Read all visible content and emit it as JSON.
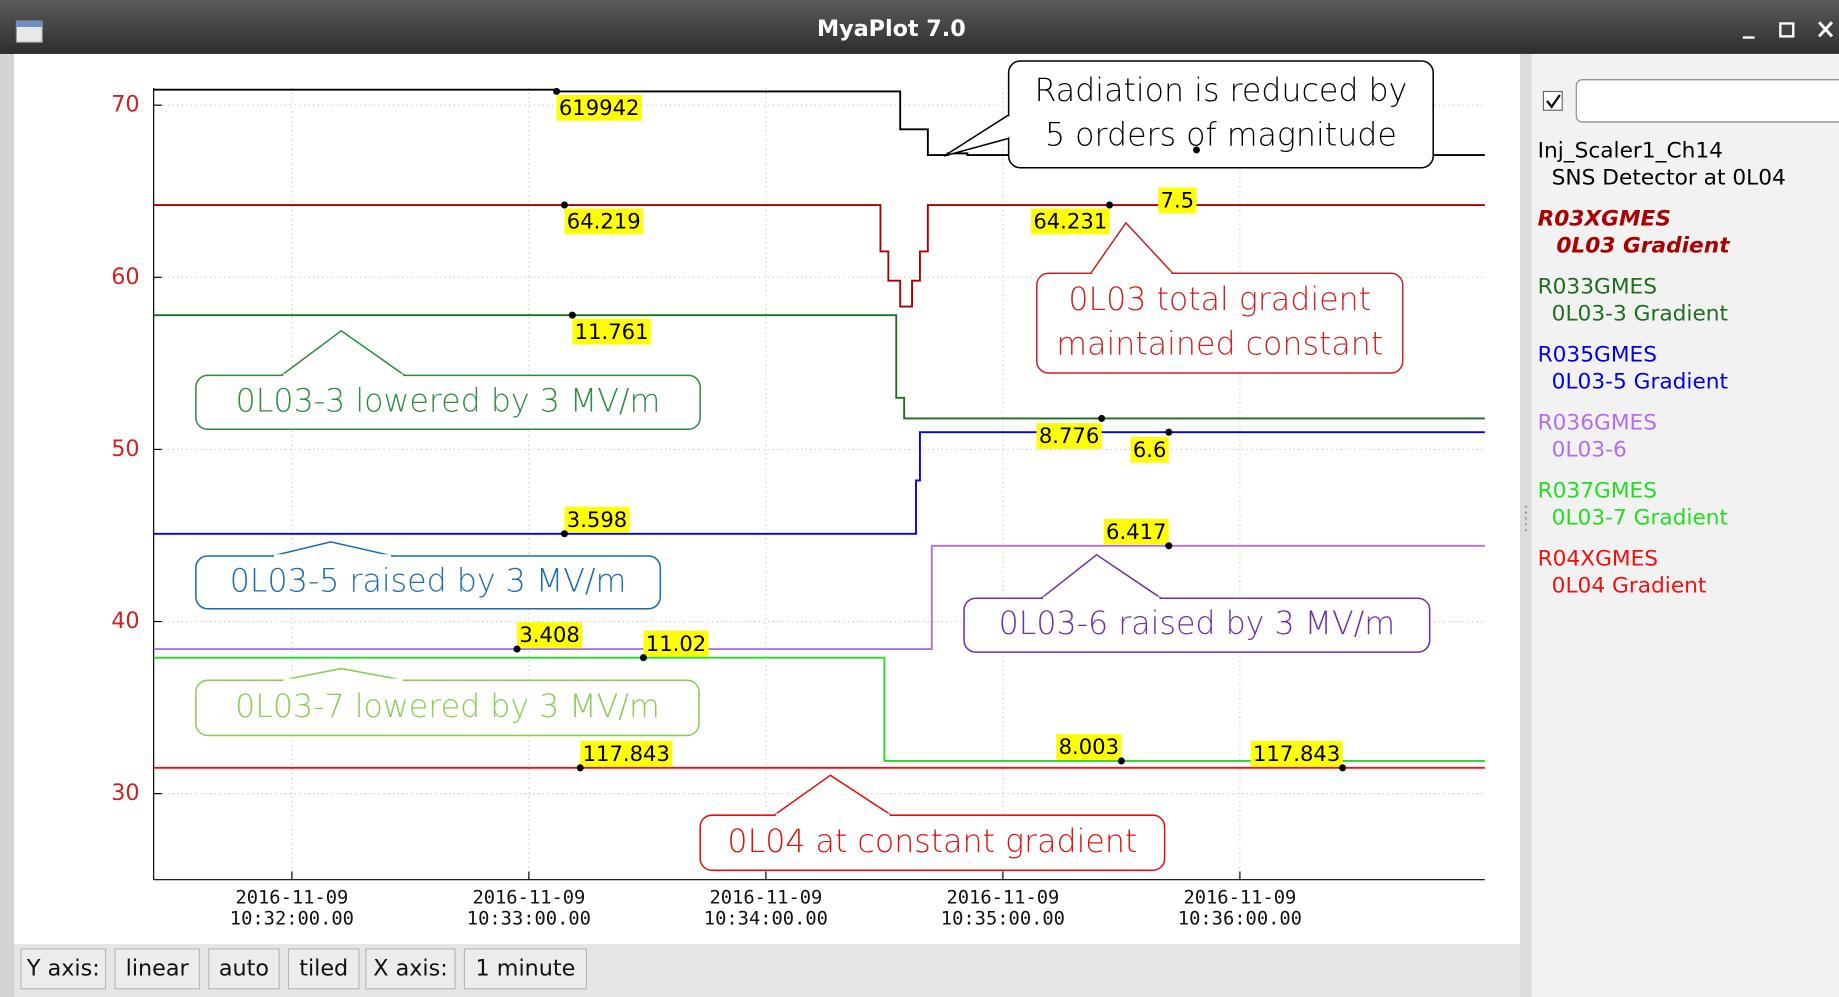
{
  "window": {
    "title": "MyaPlot 7.0"
  },
  "toolbar": [
    "Y axis:",
    "linear",
    "auto",
    "tiled",
    "X axis:",
    "1 minute"
  ],
  "chart_data": {
    "type": "line",
    "step": true,
    "grid": true,
    "xlim": [
      "2016-11-09 10:31:25",
      "2016-11-09 10:37:02"
    ],
    "xticks": [
      {
        "value": "2016-11-09 10:32:00",
        "label": "2016-11-09\n10:32:00.00"
      },
      {
        "value": "2016-11-09 10:33:00",
        "label": "2016-11-09\n10:33:00.00"
      },
      {
        "value": "2016-11-09 10:34:00",
        "label": "2016-11-09\n10:34:00.00"
      },
      {
        "value": "2016-11-09 10:35:00",
        "label": "2016-11-09\n10:35:00.00"
      },
      {
        "value": "2016-11-09 10:36:00",
        "label": "2016-11-09\n10:36:00.00"
      }
    ],
    "ylim": [
      25,
      71
    ],
    "yticks": [
      30,
      40,
      50,
      60,
      70
    ],
    "ytick_color": "#cc2222",
    "readout_color": "#ffff00",
    "series": [
      {
        "name": "Inj_Scaler1_Ch14",
        "description": "SNS Detector at 0L04",
        "color": "#000000",
        "bold": false,
        "x": [
          "2016-11-09 10:31:25",
          "2016-11-09 10:33:07",
          "2016-11-09 10:34:34",
          "2016-11-09 10:34:41",
          "2016-11-09 10:34:46",
          "2016-11-09 10:34:51",
          "2016-11-09 10:35:13",
          "2016-11-09 10:35:18",
          "2016-11-09 10:35:24",
          "2016-11-09 10:35:49",
          "2016-11-09 10:35:58",
          "2016-11-09 10:37:02"
        ],
        "values": [
          70.9,
          70.8,
          68.6,
          67.1,
          67.2,
          67.1,
          67.0,
          67.2,
          67.0,
          67.4,
          67.1,
          67.1
        ],
        "readouts": [
          {
            "x": "2016-11-09 10:33:07",
            "y": 70.8,
            "value": 619942
          },
          {
            "x": "2016-11-09 10:35:49",
            "y": 67.4,
            "value": 7.5
          }
        ]
      },
      {
        "name": "R03XGMES",
        "description": "0L03 Gradient",
        "color": "#aa0000",
        "bold": true,
        "x": [
          "2016-11-09 10:31:25",
          "2016-11-09 10:34:29",
          "2016-11-09 10:34:31",
          "2016-11-09 10:34:34",
          "2016-11-09 10:34:37",
          "2016-11-09 10:34:39",
          "2016-11-09 10:34:41",
          "2016-11-09 10:37:02"
        ],
        "values": [
          64.2,
          61.5,
          59.8,
          58.3,
          59.8,
          61.5,
          64.2,
          64.2
        ],
        "readouts": [
          {
            "x": "2016-11-09 10:33:09",
            "y": 64.2,
            "value": 64.219
          },
          {
            "x": "2016-11-09 10:35:27",
            "y": 64.2,
            "value": 64.231
          }
        ]
      },
      {
        "name": "R033GMES",
        "description": "0L03-3 Gradient",
        "color": "#1f6e1f",
        "bold": false,
        "x": [
          "2016-11-09 10:31:25",
          "2016-11-09 10:34:33",
          "2016-11-09 10:34:35",
          "2016-11-09 10:37:02"
        ],
        "values": [
          57.8,
          53.0,
          51.8,
          51.8
        ],
        "readouts": [
          {
            "x": "2016-11-09 10:33:11",
            "y": 57.8,
            "value": 11.761
          },
          {
            "x": "2016-11-09 10:35:25",
            "y": 51.8,
            "value": 8.776
          }
        ]
      },
      {
        "name": "R035GMES",
        "description": "0L03-5 Gradient",
        "color": "#0000ee",
        "bold": false,
        "x": [
          "2016-11-09 10:31:25",
          "2016-11-09 10:34:38",
          "2016-11-09 10:34:39",
          "2016-11-09 10:37:02"
        ],
        "values": [
          45.1,
          48.2,
          51.0,
          51.0
        ],
        "readouts": [
          {
            "x": "2016-11-09 10:33:09",
            "y": 45.1,
            "value": 3.598
          },
          {
            "x": "2016-11-09 10:35:42",
            "y": 51.0,
            "value": 6.6
          }
        ]
      },
      {
        "name": "R036GMES",
        "description": "0L03-6",
        "color": "#b070ee",
        "bold": false,
        "x": [
          "2016-11-09 10:31:25",
          "2016-11-09 10:34:42",
          "2016-11-09 10:37:02"
        ],
        "values": [
          38.4,
          44.4,
          44.4
        ],
        "readouts": [
          {
            "x": "2016-11-09 10:32:57",
            "y": 38.4,
            "value": 3.408
          },
          {
            "x": "2016-11-09 10:35:42",
            "y": 44.4,
            "value": 6.417
          }
        ]
      },
      {
        "name": "R037GMES",
        "description": "0L03-7 Gradient",
        "color": "#22dd22",
        "bold": false,
        "x": [
          "2016-11-09 10:31:25",
          "2016-11-09 10:34:30",
          "2016-11-09 10:37:02"
        ],
        "values": [
          37.9,
          31.9,
          31.9
        ],
        "readouts": [
          {
            "x": "2016-11-09 10:33:29",
            "y": 37.9,
            "value": 11.02
          },
          {
            "x": "2016-11-09 10:35:30",
            "y": 31.9,
            "value": 8.003
          }
        ]
      },
      {
        "name": "R04XGMES",
        "description": "0L04 Gradient",
        "color": "#ee1111",
        "bold": false,
        "x": [
          "2016-11-09 10:31:25",
          "2016-11-09 10:37:02"
        ],
        "values": [
          31.5,
          31.5
        ],
        "readouts": [
          {
            "x": "2016-11-09 10:33:13",
            "y": 31.5,
            "value": 117.843
          },
          {
            "x": "2016-11-09 10:36:26",
            "y": 31.5,
            "value": 117.843
          }
        ]
      }
    ],
    "annotations": [
      {
        "lines": [
          "Radiation is reduced by",
          "5 orders of magnitude"
        ],
        "color": "#000000"
      },
      {
        "lines": [
          "0L03 total gradient",
          "maintained constant"
        ],
        "color": "#cc2222"
      },
      {
        "lines": [
          "0L03-3 lowered by 3 MV/m"
        ],
        "color": "#2e8b3e"
      },
      {
        "lines": [
          "0L03-5 raised by 3 MV/m"
        ],
        "color": "#1a6ab0"
      },
      {
        "lines": [
          "0L03-6 raised by 3 MV/m"
        ],
        "color": "#7030a0"
      },
      {
        "lines": [
          "0L03-7 lowered by 3 MV/m"
        ],
        "color": "#88cc55"
      },
      {
        "lines": [
          "0L04 at constant gradient"
        ],
        "color": "#dd1111"
      }
    ]
  }
}
